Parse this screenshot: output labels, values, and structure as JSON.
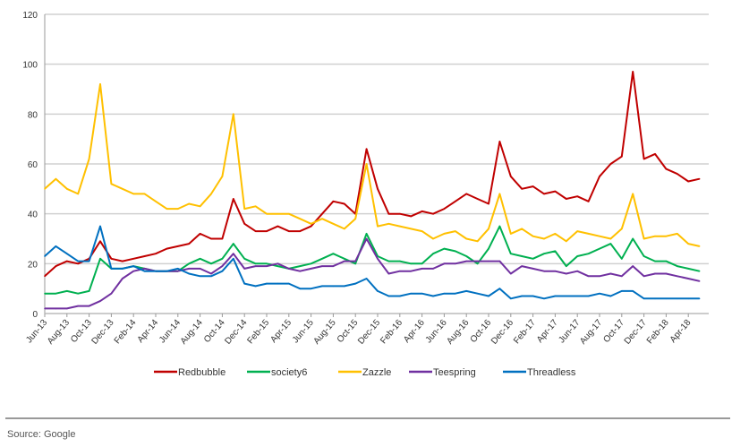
{
  "chart_data": {
    "type": "line",
    "title": "",
    "xlabel": "",
    "ylabel": "",
    "ylim": [
      0,
      120
    ],
    "yticks": [
      0,
      20,
      40,
      60,
      80,
      100,
      120
    ],
    "grid": true,
    "legend_position": "bottom",
    "x_tick_labels": [
      "Jun-13",
      "Aug-13",
      "Oct-13",
      "Dec-13",
      "Feb-14",
      "Apr-14",
      "Jun-14",
      "Aug-14",
      "Oct-14",
      "Dec-14",
      "Feb-15",
      "Apr-15",
      "Jun-15",
      "Aug-15",
      "Oct-15",
      "Dec-15",
      "Feb-16",
      "Apr-16",
      "Jun-16",
      "Aug-16",
      "Oct-16",
      "Dec-16",
      "Feb-17",
      "Apr-17",
      "Jun-17",
      "Aug-17",
      "Oct-17",
      "Dec-17",
      "Feb-18",
      "Apr-18"
    ],
    "x_start": "Jun-13",
    "x_step": "month",
    "series": [
      {
        "name": "Redbubble",
        "color": "#c00000",
        "values": [
          15,
          19,
          21,
          20,
          22,
          29,
          22,
          21,
          22,
          23,
          24,
          26,
          27,
          28,
          32,
          30,
          30,
          46,
          36,
          33,
          33,
          35,
          33,
          33,
          35,
          40,
          45,
          44,
          40,
          66,
          50,
          40,
          40,
          39,
          41,
          40,
          42,
          45,
          48,
          46,
          44,
          69,
          55,
          50,
          51,
          48,
          49,
          46,
          47,
          45,
          55,
          60,
          63,
          97,
          62,
          64,
          58,
          56,
          53,
          54
        ]
      },
      {
        "name": "society6",
        "color": "#00b050",
        "values": [
          8,
          8,
          9,
          8,
          9,
          22,
          18,
          18,
          19,
          18,
          17,
          17,
          17,
          20,
          22,
          20,
          22,
          28,
          22,
          20,
          20,
          19,
          18,
          19,
          20,
          22,
          24,
          22,
          20,
          32,
          23,
          21,
          21,
          20,
          20,
          24,
          26,
          25,
          23,
          20,
          26,
          35,
          24,
          23,
          22,
          24,
          25,
          19,
          23,
          24,
          26,
          28,
          22,
          30,
          23,
          21,
          21,
          19,
          18,
          17
        ]
      },
      {
        "name": "Zazzle",
        "color": "#ffc000",
        "values": [
          50,
          54,
          50,
          48,
          62,
          92,
          52,
          50,
          48,
          48,
          45,
          42,
          42,
          44,
          43,
          48,
          55,
          80,
          42,
          43,
          40,
          40,
          40,
          38,
          36,
          38,
          36,
          34,
          38,
          60,
          35,
          36,
          35,
          34,
          33,
          30,
          32,
          33,
          30,
          29,
          34,
          48,
          32,
          34,
          31,
          30,
          32,
          29,
          33,
          32,
          31,
          30,
          34,
          48,
          30,
          31,
          31,
          32,
          28,
          27
        ]
      },
      {
        "name": "Teespring",
        "color": "#7030a0",
        "values": [
          2,
          2,
          2,
          3,
          3,
          5,
          8,
          14,
          17,
          18,
          17,
          17,
          17,
          18,
          18,
          16,
          19,
          24,
          18,
          19,
          19,
          20,
          18,
          17,
          18,
          19,
          19,
          21,
          21,
          30,
          22,
          16,
          17,
          17,
          18,
          18,
          20,
          20,
          21,
          21,
          21,
          21,
          16,
          19,
          18,
          17,
          17,
          16,
          17,
          15,
          15,
          16,
          15,
          19,
          15,
          16,
          16,
          15,
          14,
          13
        ]
      },
      {
        "name": "Threadless",
        "color": "#0070c0",
        "values": [
          23,
          27,
          24,
          21,
          21,
          35,
          18,
          18,
          19,
          17,
          17,
          17,
          18,
          16,
          15,
          15,
          17,
          22,
          12,
          11,
          12,
          12,
          12,
          10,
          10,
          11,
          11,
          11,
          12,
          14,
          9,
          7,
          7,
          8,
          8,
          7,
          8,
          8,
          9,
          8,
          7,
          10,
          6,
          7,
          7,
          6,
          7,
          7,
          7,
          7,
          8,
          7,
          9,
          9,
          6,
          6,
          6,
          6,
          6,
          6
        ]
      }
    ]
  },
  "footer": {
    "source": "Source: Google"
  }
}
